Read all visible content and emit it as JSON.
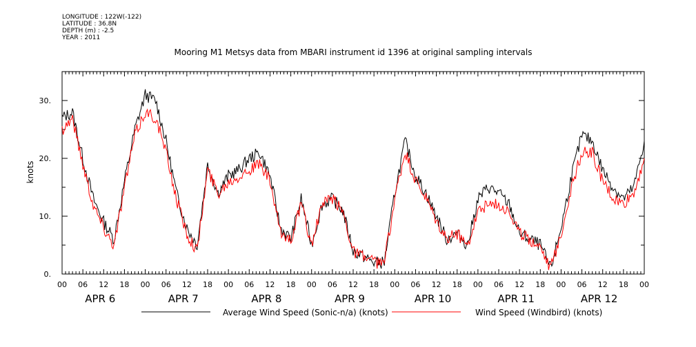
{
  "header": {
    "longitude": "LONGITUDE : 122W(-122)",
    "latitude": "LATITUDE : 36.8N",
    "depth": "DEPTH (m) : -2.5",
    "year": "YEAR : 2011"
  },
  "chart_data": {
    "type": "line",
    "title": "Mooring M1 Metsys data from MBARI instrument id 1396 at original sampling intervals",
    "xlabel": "",
    "ylabel": "knots",
    "ylim": [
      0,
      35
    ],
    "xlim_hours": [
      0,
      168
    ],
    "yticks": [
      0,
      10,
      20,
      30
    ],
    "ytick_labels": [
      "0.",
      "10.",
      "20.",
      "30."
    ],
    "hour_tick_labels": [
      "00",
      "06",
      "12",
      "18",
      "00",
      "06",
      "12",
      "18",
      "00",
      "06",
      "12",
      "18",
      "00",
      "06",
      "12",
      "18",
      "00",
      "06",
      "12",
      "18",
      "00",
      "06",
      "12",
      "18",
      "00",
      "06",
      "12",
      "18",
      "00"
    ],
    "day_labels": [
      "APR 6",
      "APR 7",
      "APR 8",
      "APR 9",
      "APR 10",
      "APR 11",
      "APR 12"
    ],
    "grid": false,
    "legend_position": "bottom",
    "series": [
      {
        "name": "Average Wind Speed (Sonic-n/a) (knots)",
        "color": "#000000",
        "x": [
          0,
          3,
          6,
          9,
          12,
          15,
          18,
          21,
          24,
          27,
          30,
          33,
          36,
          39,
          42,
          45,
          48,
          51,
          54,
          57,
          60,
          63,
          66,
          69,
          72,
          75,
          78,
          81,
          84,
          87,
          90,
          93,
          96,
          99,
          102,
          105,
          108,
          111,
          114,
          117,
          120,
          123,
          126,
          129,
          132,
          135,
          138,
          141,
          144,
          147,
          150,
          153,
          156,
          159,
          162,
          165,
          168
        ],
        "values": [
          27,
          28,
          20,
          13,
          9,
          6,
          16,
          25,
          31,
          30,
          23,
          14,
          8,
          5,
          19,
          14,
          17,
          18,
          20,
          21,
          17,
          8,
          6,
          13,
          5,
          12,
          13,
          11,
          4,
          3,
          2,
          2,
          14,
          23,
          17,
          14,
          10,
          6,
          7,
          5,
          13,
          15,
          14,
          12,
          7,
          6,
          5,
          1,
          8,
          17,
          24,
          23,
          18,
          15,
          13,
          15,
          23
        ]
      },
      {
        "name": "Wind Speed (Windbird) (knots)",
        "color": "#ff0000",
        "x": [
          0,
          3,
          6,
          9,
          12,
          15,
          18,
          21,
          24,
          27,
          30,
          33,
          36,
          39,
          42,
          45,
          48,
          51,
          54,
          57,
          60,
          63,
          66,
          69,
          72,
          75,
          78,
          81,
          84,
          87,
          90,
          93,
          96,
          99,
          102,
          105,
          108,
          111,
          114,
          117,
          120,
          123,
          126,
          129,
          132,
          135,
          138,
          141,
          144,
          147,
          150,
          153,
          156,
          159,
          162,
          165,
          168
        ],
        "values": [
          25,
          27,
          19,
          12,
          8,
          5,
          15,
          24,
          28,
          27,
          21,
          13,
          7,
          4,
          18,
          14,
          16,
          17,
          18,
          19,
          16,
          7,
          6,
          12,
          5,
          12,
          13,
          11,
          4,
          3,
          2,
          2,
          13,
          21,
          16,
          13,
          9,
          6,
          7,
          5,
          11,
          12,
          12,
          11,
          7,
          6,
          5,
          1,
          7,
          15,
          21,
          21,
          16,
          13,
          12,
          14,
          20
        ]
      }
    ]
  }
}
